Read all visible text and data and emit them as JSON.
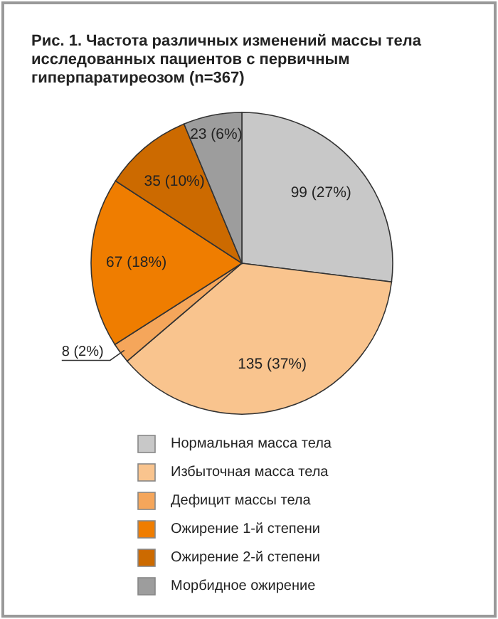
{
  "chart_data": {
    "type": "pie",
    "title": "Рис. 1. Частота различных изменений массы тела исследованных пациентов с первичным гиперпаратиреозом (n=367)",
    "categories": [
      "Нормальная масса тела",
      "Избыточная масса тела",
      "Дефицит массы тела",
      "Ожирение 1-й степени",
      "Ожирение 2-й степени",
      "Морбидное ожирение"
    ],
    "values": [
      99,
      135,
      8,
      67,
      35,
      23
    ],
    "value_labels": [
      "99 (27%)",
      "135 (37%)",
      "8 (2%)",
      "67 (18%)",
      "35 (10%)",
      "23 (6%)"
    ],
    "colors": [
      "#c8c8c8",
      "#f9c48e",
      "#f5a65b",
      "#ef7d00",
      "#cc6a00",
      "#9d9d9d"
    ],
    "legend": "bottom"
  }
}
